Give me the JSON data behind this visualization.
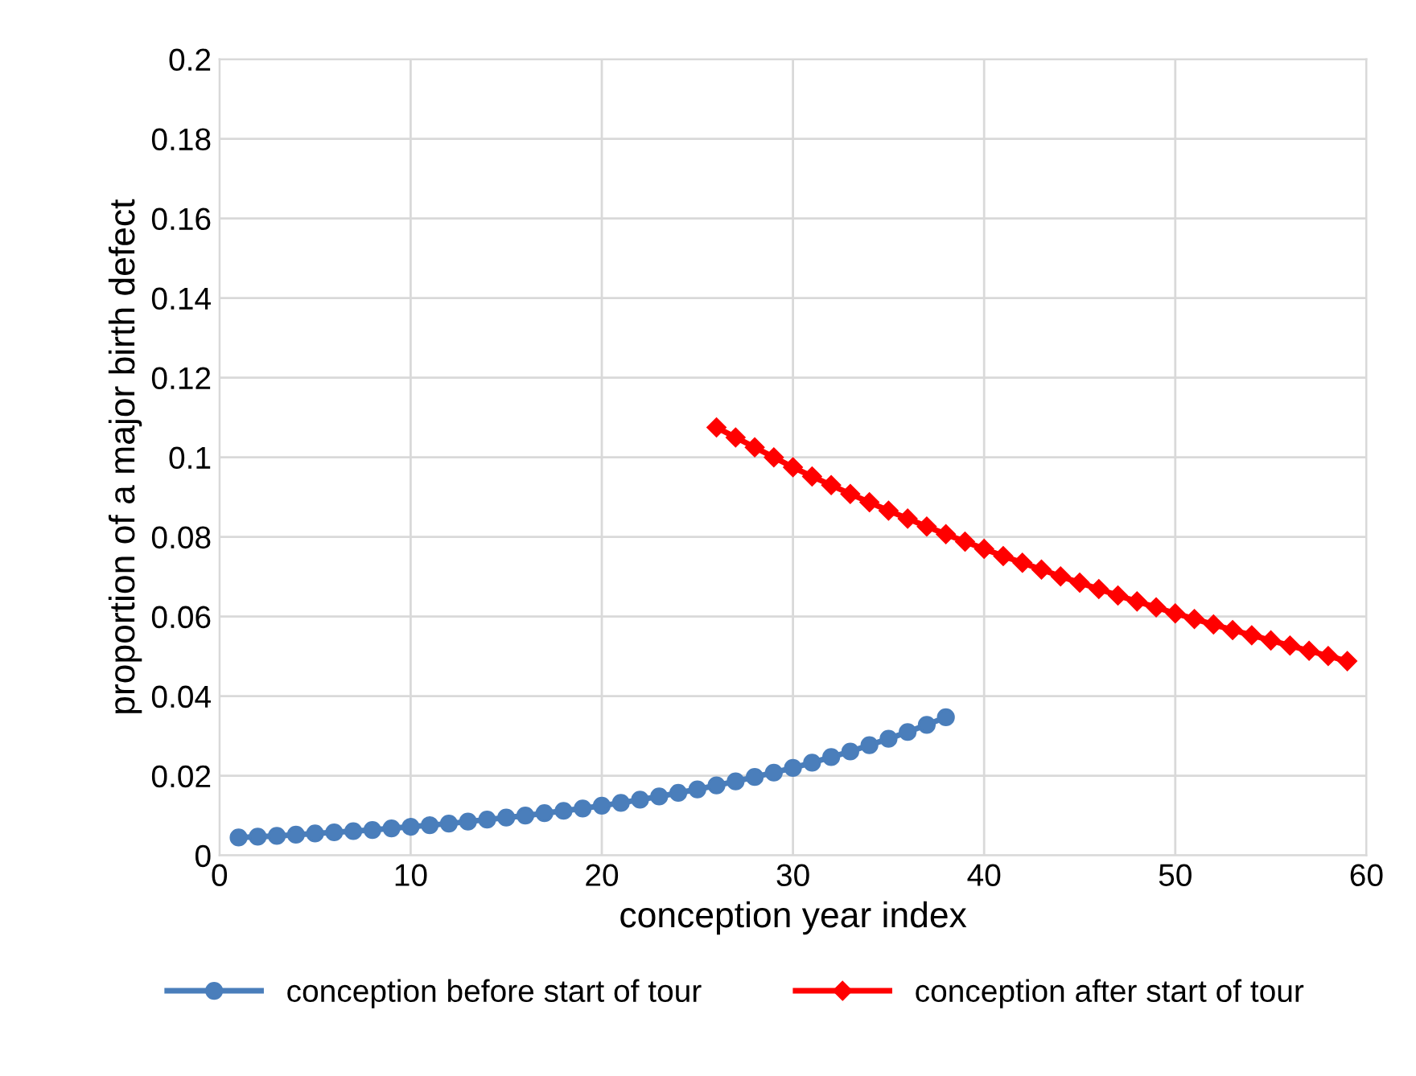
{
  "chart_data": {
    "type": "line",
    "xlabel": "conception year index",
    "ylabel": "proportion of a major birth defect",
    "xlim": [
      0,
      60
    ],
    "xticks": [
      0,
      10,
      20,
      30,
      40,
      50,
      60
    ],
    "ylim": [
      0,
      0.2
    ],
    "yticks": [
      0,
      0.02,
      0.04,
      0.06,
      0.08,
      0.1,
      0.12,
      0.14,
      0.16,
      0.18,
      0.2
    ],
    "grid": true,
    "legend": "bottom",
    "series": [
      {
        "name": "conception before start of tour",
        "color": "#4a7ebb",
        "marker": "circle",
        "x": [
          1,
          2,
          3,
          4,
          5,
          6,
          7,
          8,
          9,
          10,
          11,
          12,
          13,
          14,
          15,
          16,
          17,
          18,
          19,
          20,
          21,
          22,
          23,
          24,
          25,
          26,
          27,
          28,
          29,
          30,
          31,
          32,
          33,
          34,
          35,
          36,
          37,
          38
        ],
        "values": [
          0.0045,
          0.0047,
          0.0049,
          0.0052,
          0.0055,
          0.0058,
          0.0061,
          0.0064,
          0.0068,
          0.0072,
          0.0076,
          0.008,
          0.0085,
          0.009,
          0.0095,
          0.01,
          0.0106,
          0.0112,
          0.0118,
          0.0125,
          0.0132,
          0.014,
          0.0148,
          0.0157,
          0.0166,
          0.0176,
          0.0186,
          0.0197,
          0.0208,
          0.022,
          0.0233,
          0.0247,
          0.0261,
          0.0277,
          0.0293,
          0.031,
          0.0328,
          0.0347
        ]
      },
      {
        "name": "conception after start of tour",
        "color": "#ff0000",
        "marker": "diamond",
        "x": [
          26,
          27,
          28,
          29,
          30,
          31,
          32,
          33,
          34,
          35,
          36,
          37,
          38,
          39,
          40,
          41,
          42,
          43,
          44,
          45,
          46,
          47,
          48,
          49,
          50,
          51,
          52,
          53,
          54,
          55,
          56,
          57,
          58,
          59
        ],
        "values": [
          0.1075,
          0.105,
          0.1025,
          0.1,
          0.0975,
          0.0952,
          0.093,
          0.0908,
          0.0887,
          0.0866,
          0.0846,
          0.0826,
          0.0807,
          0.0788,
          0.077,
          0.0752,
          0.0735,
          0.0718,
          0.0701,
          0.0685,
          0.0669,
          0.0653,
          0.0638,
          0.0623,
          0.0608,
          0.0594,
          0.058,
          0.0566,
          0.0553,
          0.054,
          0.0527,
          0.0514,
          0.0501,
          0.0488
        ]
      }
    ]
  }
}
